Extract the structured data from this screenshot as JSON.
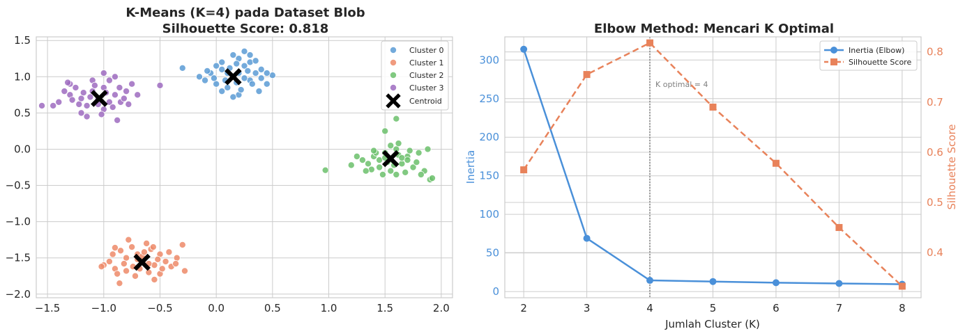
{
  "chart_data": [
    {
      "type": "scatter",
      "title": "K-Means (K=4) pada Dataset Blob",
      "subtitle": "Silhouette Score: 0.818",
      "xlabel": "",
      "ylabel": "",
      "xlim": [
        -1.6,
        2.1
      ],
      "ylim": [
        -2.05,
        1.55
      ],
      "xticks": [
        "−1.5",
        "−1.0",
        "−0.5",
        "0.0",
        "0.5",
        "1.0",
        "1.5",
        "2.0"
      ],
      "yticks": [
        "1.5",
        "1.0",
        "0.5",
        "0.0",
        "−0.5",
        "−1.0",
        "−1.5",
        "−2.0"
      ],
      "grid": true,
      "legend_position": "top-right",
      "series": [
        {
          "name": "Cluster 0",
          "color": "#5b9bd5",
          "points": [
            [
              0.15,
              1.0
            ],
            [
              0.05,
              1.1
            ],
            [
              0.25,
              1.15
            ],
            [
              0.3,
              0.95
            ],
            [
              0.0,
              0.9
            ],
            [
              -0.05,
              1.05
            ],
            [
              0.2,
              1.25
            ],
            [
              0.35,
              1.05
            ],
            [
              0.1,
              0.85
            ],
            [
              0.4,
              1.1
            ],
            [
              -0.1,
              0.95
            ],
            [
              0.45,
              0.9
            ],
            [
              0.2,
              0.75
            ],
            [
              0.25,
              1.35
            ],
            [
              0.05,
              1.2
            ],
            [
              0.3,
              1.2
            ],
            [
              -0.15,
              1.0
            ],
            [
              0.4,
              0.98
            ],
            [
              0.12,
              1.12
            ],
            [
              0.18,
              0.92
            ],
            [
              -0.02,
              0.98
            ],
            [
              0.28,
              1.08
            ],
            [
              0.08,
              0.95
            ],
            [
              0.35,
              1.22
            ],
            [
              0.22,
              0.82
            ],
            [
              0.5,
              1.02
            ],
            [
              -0.3,
              1.12
            ],
            [
              0.15,
              1.3
            ],
            [
              0.0,
              1.15
            ],
            [
              0.38,
              0.8
            ],
            [
              0.1,
              1.05
            ],
            [
              0.25,
              0.98
            ],
            [
              -0.08,
              1.08
            ],
            [
              0.32,
              0.9
            ],
            [
              0.18,
              1.18
            ],
            [
              0.45,
              1.05
            ],
            [
              0.05,
              0.8
            ],
            [
              0.15,
              0.72
            ],
            [
              0.3,
              1.3
            ],
            [
              0.2,
              1.05
            ]
          ]
        },
        {
          "name": "Cluster 1",
          "color": "#ed8a68",
          "points": [
            [
              -0.65,
              -1.55
            ],
            [
              -0.7,
              -1.45
            ],
            [
              -0.55,
              -1.6
            ],
            [
              -0.8,
              -1.5
            ],
            [
              -0.6,
              -1.7
            ],
            [
              -0.9,
              -1.65
            ],
            [
              -0.5,
              -1.45
            ],
            [
              -0.75,
              -1.35
            ],
            [
              -0.45,
              -1.55
            ],
            [
              -0.85,
              -1.4
            ],
            [
              -0.68,
              -1.65
            ],
            [
              -0.58,
              -1.38
            ],
            [
              -0.95,
              -1.55
            ],
            [
              -0.4,
              -1.62
            ],
            [
              -0.72,
              -1.75
            ],
            [
              -0.62,
              -1.3
            ],
            [
              -1.0,
              -1.6
            ],
            [
              -0.35,
              -1.5
            ],
            [
              -0.78,
              -1.25
            ],
            [
              -0.55,
              -1.8
            ],
            [
              -0.88,
              -1.72
            ],
            [
              -0.3,
              -1.32
            ],
            [
              -0.28,
              -1.68
            ],
            [
              -0.5,
              -1.72
            ],
            [
              -0.82,
              -1.58
            ],
            [
              -0.66,
              -1.48
            ],
            [
              -0.6,
              -1.58
            ],
            [
              -0.74,
              -1.62
            ],
            [
              -0.86,
              -1.85
            ],
            [
              -0.42,
              -1.42
            ],
            [
              -0.92,
              -1.45
            ],
            [
              -0.7,
              -1.52
            ],
            [
              -1.02,
              -1.62
            ],
            [
              -0.52,
              -1.52
            ],
            [
              -0.64,
              -1.42
            ],
            [
              -0.48,
              -1.65
            ],
            [
              -0.8,
              -1.68
            ],
            [
              -0.36,
              -1.58
            ],
            [
              -0.56,
              -1.35
            ],
            [
              -0.9,
              -1.36
            ]
          ]
        },
        {
          "name": "Cluster 2",
          "color": "#6bbf6b",
          "points": [
            [
              1.55,
              -0.15
            ],
            [
              1.5,
              -0.05
            ],
            [
              1.65,
              -0.2
            ],
            [
              1.45,
              -0.25
            ],
            [
              1.6,
              0.0
            ],
            [
              1.7,
              -0.1
            ],
            [
              1.4,
              -0.1
            ],
            [
              1.55,
              -0.3
            ],
            [
              1.75,
              -0.25
            ],
            [
              1.35,
              -0.2
            ],
            [
              1.8,
              -0.05
            ],
            [
              1.5,
              0.25
            ],
            [
              1.6,
              0.42
            ],
            [
              1.85,
              -0.3
            ],
            [
              1.3,
              -0.15
            ],
            [
              1.9,
              -0.42
            ],
            [
              1.48,
              -0.35
            ],
            [
              1.62,
              -0.08
            ],
            [
              1.52,
              -0.18
            ],
            [
              1.68,
              -0.32
            ],
            [
              1.42,
              -0.05
            ],
            [
              1.58,
              -0.22
            ],
            [
              1.72,
              -0.02
            ],
            [
              1.38,
              -0.28
            ],
            [
              1.25,
              -0.1
            ],
            [
              1.88,
              0.0
            ],
            [
              1.65,
              -0.12
            ],
            [
              1.55,
              0.05
            ],
            [
              1.45,
              -0.15
            ],
            [
              0.97,
              -0.29
            ],
            [
              1.92,
              -0.4
            ],
            [
              1.78,
              -0.18
            ],
            [
              1.6,
              -0.35
            ],
            [
              1.33,
              -0.3
            ],
            [
              1.5,
              -0.12
            ],
            [
              1.7,
              -0.15
            ],
            [
              1.82,
              -0.35
            ],
            [
              1.4,
              -0.02
            ],
            [
              1.62,
              0.08
            ],
            [
              1.2,
              -0.22
            ]
          ]
        },
        {
          "name": "Cluster 3",
          "color": "#9e6bbf",
          "points": [
            [
              -1.05,
              0.7
            ],
            [
              -1.1,
              0.8
            ],
            [
              -0.95,
              0.65
            ],
            [
              -1.2,
              0.7
            ],
            [
              -1.0,
              0.85
            ],
            [
              -0.9,
              0.75
            ],
            [
              -1.15,
              0.6
            ],
            [
              -1.3,
              0.75
            ],
            [
              -0.85,
              0.65
            ],
            [
              -1.0,
              0.55
            ],
            [
              -1.25,
              0.85
            ],
            [
              -0.8,
              0.8
            ],
            [
              -1.1,
              0.95
            ],
            [
              -0.95,
              0.95
            ],
            [
              -1.35,
              0.8
            ],
            [
              -1.4,
              0.65
            ],
            [
              -0.75,
              0.9
            ],
            [
              -1.2,
              0.5
            ],
            [
              -1.45,
              0.6
            ],
            [
              -0.7,
              0.75
            ],
            [
              -1.0,
              1.05
            ],
            [
              -0.9,
              1.0
            ],
            [
              -1.3,
              0.9
            ],
            [
              -1.15,
              0.45
            ],
            [
              -0.88,
              0.4
            ],
            [
              -0.5,
              0.88
            ],
            [
              -1.55,
              0.6
            ],
            [
              -1.05,
              0.62
            ],
            [
              -1.12,
              0.72
            ],
            [
              -0.98,
              0.78
            ],
            [
              -1.22,
              0.62
            ],
            [
              -0.92,
              0.58
            ],
            [
              -1.08,
              0.88
            ],
            [
              -0.82,
              0.7
            ],
            [
              -1.18,
              0.78
            ],
            [
              -1.28,
              0.68
            ],
            [
              -0.78,
              0.62
            ],
            [
              -1.02,
              0.48
            ],
            [
              -1.32,
              0.92
            ],
            [
              -0.86,
              0.85
            ]
          ]
        }
      ],
      "centroids": {
        "name": "Centroid",
        "color": "#000000",
        "points": [
          [
            0.15,
            1.0
          ],
          [
            -0.66,
            -1.56
          ],
          [
            1.55,
            -0.13
          ],
          [
            -1.04,
            0.7
          ]
        ]
      }
    },
    {
      "type": "line",
      "title": "Elbow Method: Mencari K Optimal",
      "xlabel": "Jumlah Cluster (K)",
      "ylabel": "Inertia",
      "y2label": "Silhouette Score",
      "x": [
        2,
        3,
        4,
        5,
        6,
        7,
        8
      ],
      "xlim": [
        1.7,
        8.3
      ],
      "ylim": [
        -8,
        330
      ],
      "y2lim": [
        0.31,
        0.83
      ],
      "xticks": [
        "2",
        "3",
        "4",
        "5",
        "6",
        "7",
        "8"
      ],
      "yticks": [
        "0",
        "50",
        "100",
        "150",
        "200",
        "250",
        "300"
      ],
      "y2ticks": [
        "0.4",
        "0.5",
        "0.6",
        "0.7",
        "0.8"
      ],
      "grid": true,
      "legend_position": "top-right",
      "annotation": "K optimal = 4",
      "annotation_x": 4,
      "series": [
        {
          "name": "Inertia (Elbow)",
          "axis": "left",
          "color": "#4a90d9",
          "marker": "circle",
          "values": [
            314,
            69,
            14.5,
            13,
            11.5,
            10.5,
            9.5
          ]
        },
        {
          "name": "Silhouette Score",
          "axis": "right",
          "color": "#e8825a",
          "marker": "square",
          "style": "dashed",
          "values": [
            0.565,
            0.755,
            0.818,
            0.69,
            0.578,
            0.45,
            0.333
          ]
        }
      ]
    }
  ]
}
